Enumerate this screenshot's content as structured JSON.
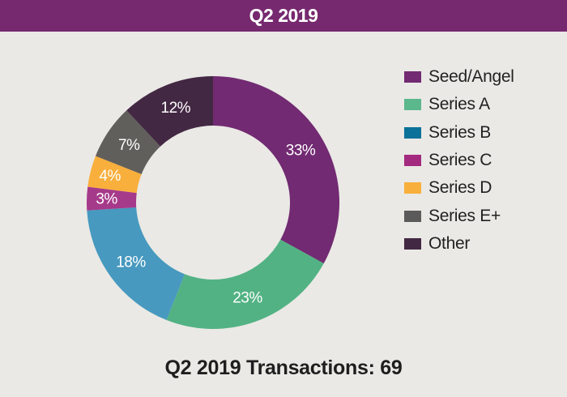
{
  "header": {
    "title": "Q2 2019"
  },
  "footer": {
    "text": "Q2 2019 Transactions: 69"
  },
  "chart_data": {
    "type": "pie",
    "variant": "donut",
    "title": "Q2 2019",
    "subtitle": "Q2 2019 Transactions: 69",
    "start": "top",
    "direction": "clockwise",
    "legend_position": "right",
    "categories": [
      "Seed/Angel",
      "Series A",
      "Series B",
      "Series C",
      "Series D",
      "Series E+",
      "Other"
    ],
    "values": [
      33,
      23,
      18,
      3,
      4,
      7,
      12
    ],
    "labels": [
      "33%",
      "23%",
      "18%",
      "3%",
      "4%",
      "7%",
      "12%"
    ],
    "slice_colors": [
      "#722a72",
      "#52b283",
      "#4799bf",
      "#a63a8a",
      "#f8af3c",
      "#615f5b",
      "#432843"
    ],
    "legend": [
      {
        "label": "Seed/Angel",
        "color": "#722a72"
      },
      {
        "label": "Series A",
        "color": "#5bb78c"
      },
      {
        "label": "Series B",
        "color": "#0a7199"
      },
      {
        "label": "Series C",
        "color": "#a42a80"
      },
      {
        "label": "Series D",
        "color": "#f8af3c"
      },
      {
        "label": "Series E+",
        "color": "#5b5b5b"
      },
      {
        "label": "Other",
        "color": "#432843"
      }
    ]
  }
}
